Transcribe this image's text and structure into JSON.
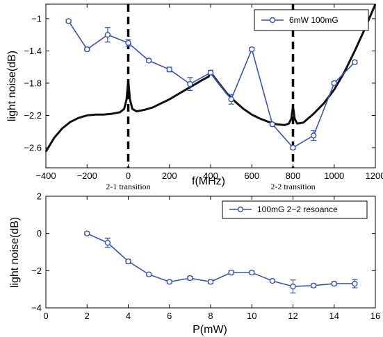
{
  "chart_data": [
    {
      "type": "line",
      "xlabel": "f(MHz)",
      "ylabel": "light noise(dB)",
      "xlim": [
        -400,
        1200
      ],
      "ylim": [
        -2.85,
        -0.82
      ],
      "xticks": [
        -400,
        -200,
        0,
        200,
        400,
        600,
        800,
        1000,
        1200
      ],
      "xtick_labels": [
        "−400",
        "−200",
        "0",
        "200",
        "400",
        "600",
        "800",
        "1000",
        "1200"
      ],
      "yticks": [
        -2.6,
        -2.2,
        -1.8,
        -1.4,
        -1.0
      ],
      "ytick_labels": [
        "−2.6",
        "−2.2",
        "−1.8",
        "−1.4",
        "−1"
      ],
      "legend_position": "top-right",
      "grid": false,
      "colors": {
        "series": "#3355bb",
        "spectrum": "#111111",
        "dashed": "#000000"
      },
      "series": [
        {
          "name": "6mW 100mG",
          "x": [
            -290,
            -200,
            -100,
            0,
            100,
            200,
            300,
            400,
            500,
            600,
            700,
            800,
            900,
            1000,
            1100
          ],
          "y": [
            -1.03,
            -1.38,
            -1.2,
            -1.3,
            -1.52,
            -1.63,
            -1.81,
            -1.67,
            -2.0,
            -1.38,
            -2.31,
            -2.6,
            -2.45,
            -1.8,
            -1.54
          ],
          "err": [
            0.02,
            0.02,
            0.09,
            0.04,
            0.02,
            0.03,
            0.08,
            0.03,
            0.06,
            0.02,
            0.02,
            0.02,
            0.06,
            0.02,
            0.02
          ]
        }
      ],
      "spectrum_profile": {
        "x": [
          -400,
          -360,
          -320,
          -280,
          -240,
          -200,
          -160,
          -120,
          -80,
          -40,
          -20,
          -8,
          -3,
          0,
          3,
          8,
          20,
          40,
          80,
          120,
          160,
          200,
          240,
          280,
          320,
          360,
          390,
          400,
          410,
          440,
          480,
          520,
          560,
          600,
          640,
          680,
          720,
          760,
          780,
          792,
          797,
          800,
          803,
          808,
          820,
          850,
          900,
          950,
          1000,
          1050,
          1100,
          1150,
          1200
        ],
        "y": [
          -2.65,
          -2.48,
          -2.36,
          -2.28,
          -2.23,
          -2.2,
          -2.19,
          -2.19,
          -2.18,
          -2.16,
          -2.12,
          -2.0,
          -1.85,
          -1.78,
          -1.85,
          -2.0,
          -2.12,
          -2.15,
          -2.13,
          -2.1,
          -2.05,
          -2.0,
          -1.94,
          -1.88,
          -1.82,
          -1.76,
          -1.72,
          -1.66,
          -1.7,
          -1.8,
          -1.93,
          -2.03,
          -2.12,
          -2.19,
          -2.24,
          -2.28,
          -2.31,
          -2.32,
          -2.3,
          -2.24,
          -2.14,
          -2.1,
          -2.14,
          -2.24,
          -2.3,
          -2.29,
          -2.18,
          -2.05,
          -1.88,
          -1.66,
          -1.4,
          -1.12,
          -0.82
        ]
      },
      "dashed_lines_x": [
        0,
        800
      ],
      "annotations": [
        {
          "text": "2-1  transition",
          "x": 0
        },
        {
          "text": "2-2  transition",
          "x": 800
        }
      ]
    },
    {
      "type": "line",
      "xlabel": "P(mW)",
      "ylabel": "light noise(dB)",
      "xlim": [
        0,
        16
      ],
      "ylim": [
        -4,
        2
      ],
      "xticks": [
        0,
        2,
        4,
        6,
        8,
        10,
        12,
        14,
        16
      ],
      "xtick_labels": [
        "0",
        "2",
        "4",
        "6",
        "8",
        "10",
        "12",
        "14",
        "16"
      ],
      "yticks": [
        -4,
        -2,
        0,
        2
      ],
      "ytick_labels": [
        "−4",
        "−2",
        "0",
        "2"
      ],
      "legend_position": "top-right",
      "grid": false,
      "colors": {
        "series": "#3355bb"
      },
      "series": [
        {
          "name": "100mG 2−2 resoance",
          "x": [
            2,
            3,
            4,
            5,
            6,
            7,
            8,
            9,
            10,
            11,
            12,
            13,
            14,
            15
          ],
          "y": [
            0.0,
            -0.5,
            -1.5,
            -2.2,
            -2.6,
            -2.4,
            -2.6,
            -2.1,
            -2.1,
            -2.55,
            -2.85,
            -2.8,
            -2.7,
            -2.7
          ],
          "err": [
            0.08,
            0.25,
            0.12,
            0.08,
            0.08,
            0.1,
            0.1,
            0.1,
            0.08,
            0.08,
            0.35,
            0.1,
            0.1,
            0.22
          ]
        }
      ]
    }
  ]
}
